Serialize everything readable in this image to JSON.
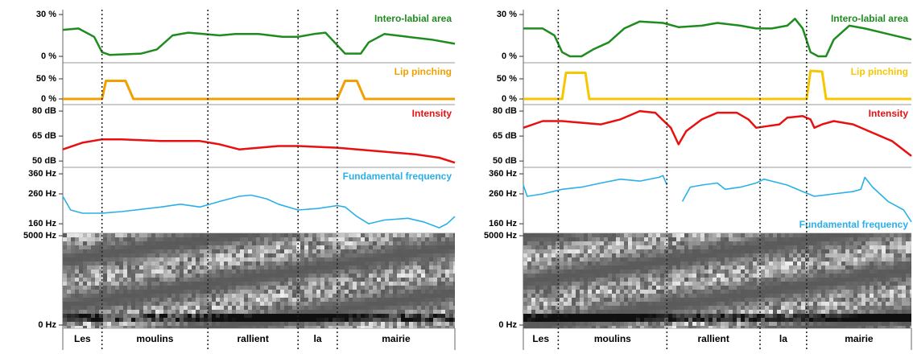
{
  "chart_data": [
    {
      "type": "line",
      "title": "Intero-labial area",
      "color": "#1e8c1e",
      "xlim": [
        0,
        100
      ],
      "x": [
        0,
        4,
        8,
        10,
        12,
        20,
        24,
        28,
        32,
        36,
        40,
        44,
        50,
        56,
        60,
        64,
        67,
        70,
        72,
        76,
        78,
        82,
        88,
        94,
        100
      ],
      "values": [
        19,
        20,
        14,
        3,
        1,
        2,
        5,
        15,
        17,
        16,
        15,
        16,
        16,
        14,
        14,
        16,
        17,
        8,
        2,
        2,
        10,
        16,
        14,
        12,
        9
      ],
      "ylim": [
        -4.6,
        33.5
      ],
      "yticks": [
        {
          "value": 0,
          "label": "0 %"
        },
        {
          "value": 30,
          "label": "30 %"
        }
      ]
    },
    {
      "type": "line",
      "title": "Lip pinching",
      "color": "#f0a000",
      "xlim": [
        0,
        100
      ],
      "x": [
        0,
        10,
        11,
        16,
        18,
        70,
        72,
        75,
        77,
        100
      ],
      "values": [
        0,
        0,
        45,
        45,
        0,
        0,
        45,
        45,
        0,
        0
      ],
      "ylim": [
        -14,
        90
      ],
      "yticks": [
        {
          "value": 0,
          "label": "0 %"
        },
        {
          "value": 50,
          "label": "50 %"
        }
      ]
    },
    {
      "type": "line",
      "title": "Intensity",
      "color": "#e81010",
      "xlim": [
        0,
        100
      ],
      "x": [
        0,
        5,
        10,
        15,
        25,
        35,
        40,
        45,
        50,
        55,
        60,
        70,
        80,
        90,
        96,
        100
      ],
      "values": [
        57,
        61,
        63,
        63,
        62,
        62,
        60,
        57,
        58,
        59,
        59,
        58,
        56,
        54,
        52,
        49
      ],
      "ylim": [
        46.2,
        83.9
      ],
      "yticks": [
        {
          "value": 50,
          "label": "50 dB"
        },
        {
          "value": 65,
          "label": "65 dB"
        },
        {
          "value": 80,
          "label": "80 dB"
        }
      ]
    },
    {
      "type": "line",
      "title": "Fundamental frequency",
      "color": "#29b0ea",
      "xlim": [
        0,
        100
      ],
      "log_scale": true,
      "x": [
        0,
        2,
        5,
        10,
        15,
        25,
        30,
        35,
        40,
        45,
        48,
        52,
        55,
        60,
        65,
        70,
        72,
        75,
        78,
        82,
        88,
        92,
        96,
        98,
        100
      ],
      "values": [
        250,
        200,
        190,
        190,
        195,
        210,
        220,
        210,
        230,
        250,
        255,
        240,
        220,
        200,
        205,
        215,
        210,
        180,
        160,
        170,
        175,
        165,
        150,
        160,
        180
      ],
      "ylim": [
        137,
        400
      ],
      "yticks": [
        {
          "value": 160,
          "label": "160 Hz"
        },
        {
          "value": 260,
          "label": "260 Hz"
        },
        {
          "value": 360,
          "label": "360 Hz"
        }
      ]
    },
    {
      "type": "spectrogram",
      "xlim": [
        0,
        100
      ],
      "ylim": [
        -180,
        5135
      ],
      "yticks": [
        {
          "value": 0,
          "label": "0 Hz"
        },
        {
          "value": 5000,
          "label": "5000 Hz"
        }
      ],
      "categories": [
        "Les",
        "moulins",
        "rallient",
        "la",
        "mairie"
      ],
      "bins": [
        0,
        10,
        37,
        60,
        70,
        100
      ]
    },
    {
      "type": "line",
      "title": "Intero-labial area",
      "color": "#1e8c1e",
      "xlim": [
        0,
        100
      ],
      "x": [
        0,
        5,
        8,
        10,
        12,
        15,
        18,
        22,
        26,
        30,
        36,
        40,
        46,
        50,
        56,
        60,
        64,
        68,
        70,
        72,
        74,
        76,
        78,
        80,
        84,
        88,
        94,
        100
      ],
      "values": [
        20,
        20,
        15,
        3,
        0,
        0,
        5,
        10,
        20,
        25,
        24,
        21,
        22,
        24,
        22,
        20,
        20,
        22,
        27,
        20,
        3,
        0,
        0,
        12,
        22,
        20,
        16,
        12
      ],
      "ylim": [
        -4.6,
        33.5
      ],
      "yticks": [
        {
          "value": 0,
          "label": "0 %"
        },
        {
          "value": 30,
          "label": "30 %"
        }
      ]
    },
    {
      "type": "line",
      "title": "Lip pinching",
      "color": "#f7c600",
      "xlim": [
        0,
        100
      ],
      "x": [
        0,
        10,
        11,
        16,
        17,
        73,
        74,
        77,
        78,
        100
      ],
      "values": [
        0,
        0,
        65,
        65,
        0,
        0,
        70,
        68,
        0,
        0
      ],
      "ylim": [
        -14,
        90
      ],
      "yticks": [
        {
          "value": 0,
          "label": "0 %"
        },
        {
          "value": 50,
          "label": "50 %"
        }
      ]
    },
    {
      "type": "line",
      "title": "Intensity",
      "color": "#e81010",
      "xlim": [
        0,
        100
      ],
      "x": [
        0,
        5,
        10,
        20,
        25,
        30,
        34,
        38,
        40,
        42,
        46,
        50,
        55,
        58,
        60,
        63,
        66,
        68,
        72,
        74,
        75,
        77,
        80,
        85,
        90,
        95,
        100
      ],
      "values": [
        70,
        74,
        74,
        72,
        75,
        80,
        79,
        70,
        60,
        68,
        75,
        79,
        79,
        75,
        70,
        71,
        72,
        76,
        77,
        75,
        70,
        72,
        74,
        72,
        67,
        62,
        53
      ],
      "ylim": [
        46.2,
        83.9
      ],
      "yticks": [
        {
          "value": 50,
          "label": "50 dB"
        },
        {
          "value": 65,
          "label": "65 dB"
        },
        {
          "value": 80,
          "label": "80 dB"
        }
      ]
    },
    {
      "type": "line",
      "title": "Fundamental frequency",
      "color": "#29b0ea",
      "xlim": [
        0,
        100
      ],
      "log_scale": true,
      "x": [
        0,
        1,
        5,
        10,
        15,
        20,
        25,
        30,
        35,
        36,
        37,
        39,
        41,
        43,
        46,
        50,
        52,
        56,
        60,
        62,
        64,
        68,
        72,
        75,
        80,
        85,
        87,
        88,
        90,
        94,
        98,
        100
      ],
      "values": [
        300,
        250,
        260,
        280,
        290,
        310,
        330,
        320,
        340,
        350,
        300,
        null,
        230,
        290,
        300,
        310,
        280,
        290,
        310,
        330,
        320,
        300,
        270,
        250,
        260,
        270,
        280,
        340,
        290,
        230,
        200,
        165
      ],
      "ylim": [
        137,
        400
      ],
      "yticks": [
        {
          "value": 160,
          "label": "160 Hz"
        },
        {
          "value": 260,
          "label": "260 Hz"
        },
        {
          "value": 360,
          "label": "360 Hz"
        }
      ]
    },
    {
      "type": "spectrogram",
      "xlim": [
        0,
        100
      ],
      "ylim": [
        -180,
        5135
      ],
      "yticks": [
        {
          "value": 0,
          "label": "0 Hz"
        },
        {
          "value": 5000,
          "label": "5000 Hz"
        }
      ],
      "categories": [
        "Les",
        "moulins",
        "rallient",
        "la",
        "mairie"
      ],
      "bins": [
        0,
        9,
        37,
        61,
        73,
        100
      ]
    }
  ]
}
